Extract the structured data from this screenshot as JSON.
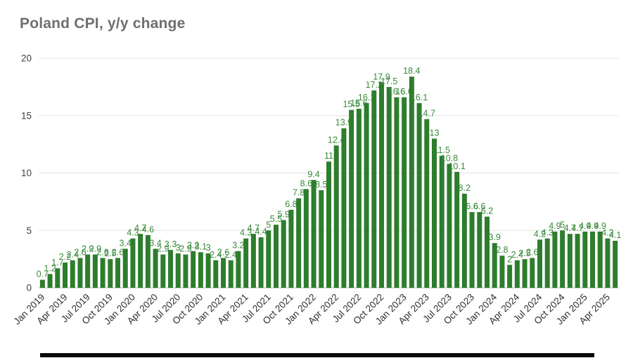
{
  "title": "Poland CPI, y/y change",
  "chart_data": {
    "type": "bar",
    "title": "Poland CPI, y/y change",
    "series_name": "CPI y/y change (%)",
    "categories": [
      "Jan 2019",
      "Feb 2019",
      "Mar 2019",
      "Apr 2019",
      "May 2019",
      "Jun 2019",
      "Jul 2019",
      "Aug 2019",
      "Sep 2019",
      "Oct 2019",
      "Nov 2019",
      "Dec 2019",
      "Jan 2020",
      "Feb 2020",
      "Mar 2020",
      "Apr 2020",
      "May 2020",
      "Jun 2020",
      "Jul 2020",
      "Aug 2020",
      "Sep 2020",
      "Oct 2020",
      "Nov 2020",
      "Dec 2020",
      "Jan 2021",
      "Feb 2021",
      "Mar 2021",
      "Apr 2021",
      "May 2021",
      "Jun 2021",
      "Jul 2021",
      "Aug 2021",
      "Sep 2021",
      "Oct 2021",
      "Nov 2021",
      "Dec 2021",
      "Jan 2022",
      "Feb 2022",
      "Mar 2022",
      "Apr 2022",
      "May 2022",
      "Jun 2022",
      "Jul 2022",
      "Aug 2022",
      "Sep 2022",
      "Oct 2022",
      "Nov 2022",
      "Dec 2022",
      "Jan 2023",
      "Feb 2023",
      "Mar 2023",
      "Apr 2023",
      "May 2023",
      "Jun 2023",
      "Jul 2023",
      "Aug 2023",
      "Sep 2023",
      "Oct 2023",
      "Nov 2023",
      "Dec 2023",
      "Jan 2024",
      "Feb 2024",
      "Mar 2024",
      "Apr 2024",
      "May 2024",
      "Jun 2024",
      "Jul 2024",
      "Aug 2024",
      "Sep 2024",
      "Oct 2024",
      "Nov 2024",
      "Dec 2024",
      "Jan 2025",
      "Feb 2025",
      "Mar 2025",
      "Apr 2025",
      "May 2025"
    ],
    "values": [
      0.7,
      1.2,
      1.7,
      2.2,
      2.4,
      2.6,
      2.9,
      2.9,
      2.6,
      2.5,
      2.6,
      3.4,
      4.3,
      4.7,
      4.6,
      3.4,
      2.9,
      3.3,
      3.0,
      2.9,
      3.2,
      3.1,
      3.0,
      2.4,
      2.6,
      2.4,
      3.2,
      4.3,
      4.7,
      4.4,
      5.0,
      5.5,
      5.9,
      6.8,
      7.8,
      8.6,
      9.4,
      8.5,
      11.0,
      12.4,
      13.9,
      15.5,
      15.6,
      16.1,
      17.2,
      17.9,
      17.5,
      16.6,
      16.6,
      18.4,
      16.1,
      14.7,
      13.0,
      11.5,
      10.8,
      10.1,
      8.2,
      6.6,
      6.6,
      6.2,
      3.9,
      2.8,
      2.0,
      2.4,
      2.5,
      2.6,
      4.2,
      4.3,
      4.9,
      5.0,
      4.7,
      4.7,
      4.9,
      4.9,
      4.9,
      4.3,
      4.1
    ],
    "xlabel": "",
    "ylabel": "",
    "ylim": [
      0,
      20
    ],
    "y_ticks": [
      0,
      5,
      10,
      15,
      20
    ],
    "x_tick_every": 3,
    "grid": true,
    "legend": "none",
    "data_labels": true
  },
  "colors": {
    "bar": "#2d7d2d",
    "data_label": "#3a8a3a",
    "grid_line": "#e3e3e3",
    "axis_line": "#b5b5b5",
    "y_tick_label": "#424242",
    "x_tick_label": "#2f2f2f",
    "title": "#6f6f6f"
  }
}
